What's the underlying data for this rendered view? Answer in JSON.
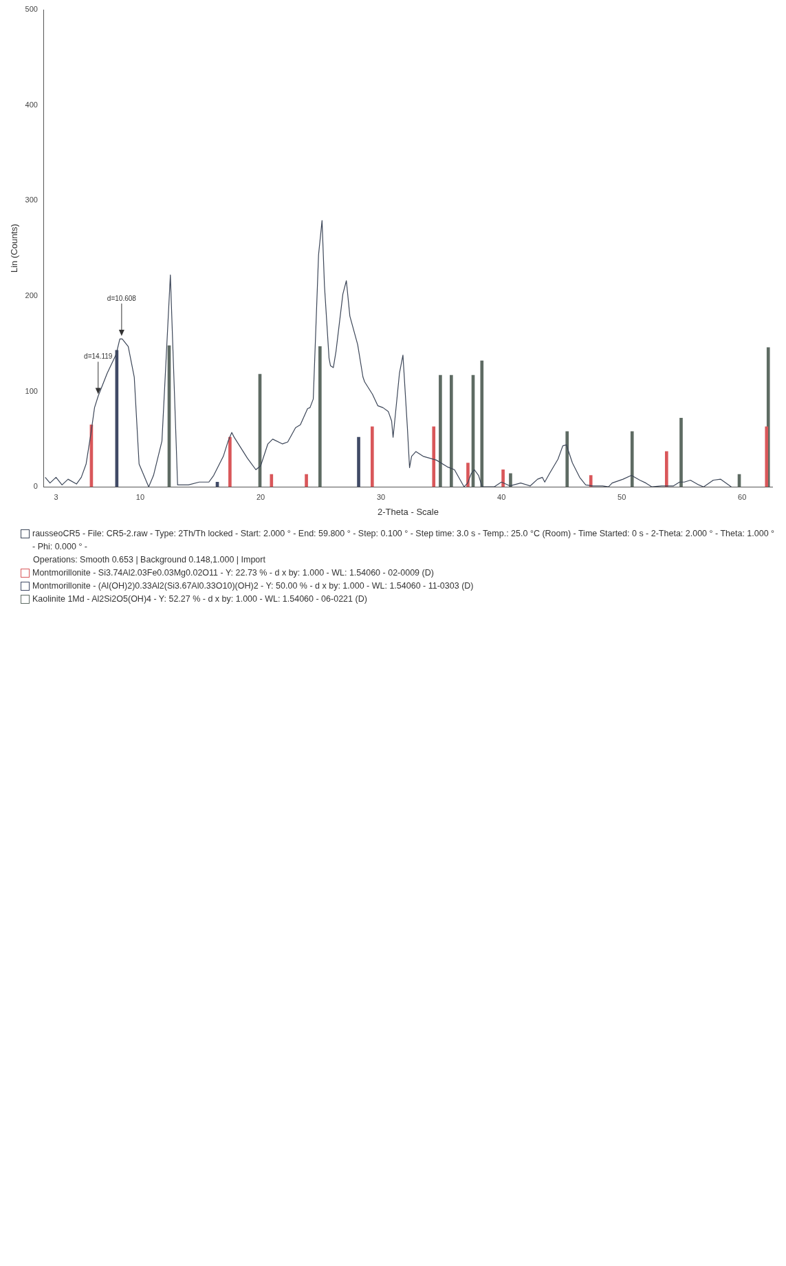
{
  "chart_data": {
    "type": "line",
    "xlabel": "2-Theta - Scale",
    "ylabel": "Lin (Counts)",
    "xlim": [
      2,
      62.5
    ],
    "xticks": [
      3,
      10,
      20,
      30,
      40,
      50,
      60
    ],
    "ylim": [
      0,
      500
    ],
    "yticks": [
      0,
      100,
      200,
      300,
      400,
      500
    ],
    "grid": false,
    "legend": "bottom",
    "marker": "none",
    "annotations": [
      {
        "text": "d=14.119",
        "x": 6.5,
        "y": 95
      },
      {
        "text": "d=10.608",
        "x": 8.45,
        "y": 156
      },
      "Operations: Smooth 0.653 | Background 0.148,1.000 | Import"
    ],
    "series": [
      {
        "name": "rausseoCR5 - File: CR5-2.raw - Type: 2Th/Th locked - Start: 2.000 ° - End: 59.800 ° - Step: 0.100 ° - Step time: 3.0 s - Temp.: 25.0 °C (Room) - Time Started: 0 s - 2-Theta: 2.000 ° - Theta: 1.000 ° - Phi: 0.000 ° -",
        "color": "#3c4658",
        "x": [
          2.1,
          2.5,
          3.0,
          3.5,
          4.0,
          4.7,
          5.1,
          5.5,
          5.9,
          6.2,
          6.5,
          7.25,
          8.0,
          8.3,
          8.5,
          9.0,
          9.5,
          9.9,
          10.7,
          11.1,
          11.8,
          12.5,
          13.1,
          14.0,
          14.9,
          15.7,
          16.1,
          16.9,
          17.3,
          17.6,
          17.8,
          18.9,
          19.6,
          20.0,
          20.6,
          21.0,
          21.8,
          22.25,
          22.9,
          23.3,
          23.9,
          24.1,
          24.37,
          24.81,
          25.1,
          25.3,
          25.68,
          25.8,
          26.04,
          26.26,
          26.83,
          27.12,
          27.41,
          28.06,
          28.5,
          28.64,
          29.29,
          29.73,
          30.16,
          30.6,
          30.88,
          31.0,
          31.1,
          31.53,
          31.82,
          32.19,
          32.37,
          32.54,
          32.9,
          33.5,
          34.06,
          34.6,
          35.5,
          36.1,
          36.5,
          36.9,
          37.2,
          37.5,
          37.75,
          38.1,
          38.4,
          39.0,
          39.4,
          40.0,
          40.7,
          41.6,
          42.4,
          43.0,
          43.4,
          43.6,
          44.0,
          44.7,
          45.1,
          45.4,
          45.9,
          46.5,
          47.0,
          47.6,
          48.4,
          48.9,
          49.2,
          50.1,
          50.8,
          51.5,
          52.0,
          52.5,
          53.3,
          53.8,
          54.3,
          54.8,
          55.2,
          55.7,
          56.4,
          56.8,
          57.6,
          58.2,
          59.1
        ],
        "values": [
          10,
          4,
          10,
          2,
          8,
          3,
          10,
          24,
          56,
          83,
          95,
          119,
          139,
          155,
          155,
          147,
          115,
          24,
          0,
          12,
          48,
          222,
          2,
          2,
          5,
          5,
          12,
          32,
          48,
          57,
          52,
          30,
          18,
          22,
          45,
          50,
          45,
          47,
          62,
          65,
          82,
          83,
          92,
          243,
          279,
          211,
          135,
          127,
          125,
          142,
          202,
          216,
          179,
          149,
          115,
          110,
          97,
          85,
          83,
          79,
          69,
          52,
          64,
          119,
          138,
          62,
          20,
          32,
          37,
          32,
          30,
          28,
          21,
          18,
          9,
          0,
          4,
          14,
          18,
          12,
          0,
          0,
          0,
          5,
          1,
          4,
          1,
          8,
          10,
          5,
          14,
          29,
          43,
          44,
          25,
          10,
          2,
          1,
          1,
          0,
          4,
          8,
          12,
          7,
          4,
          0,
          1,
          1,
          1,
          5,
          5,
          7,
          2,
          0,
          7,
          8,
          0
        ]
      },
      {
        "name": "Montmorillonite - Si3.74Al2.03Fe0.03Mg0.02O11 - Y: 22.73 % - d x by: 1.000 - WL: 1.54060 - 02-0009 (D)",
        "type": "bar",
        "color": "#d9575a",
        "x": [
          5.94,
          17.45,
          20.9,
          23.8,
          29.27,
          34.38,
          37.22,
          40.14,
          47.43,
          53.72,
          62.03
        ],
        "values": [
          65,
          52,
          13,
          13,
          63,
          63,
          25,
          18,
          12,
          37,
          63
        ]
      },
      {
        "name": "Montmorillonite - (Al(OH)2)0.33Al2(Si3.67Al0.33O10)(OH)2 - Y: 50.00 % - d x by: 1.000 - WL: 1.54060 - 11-0303 (D)",
        "type": "bar",
        "color": "#404a66",
        "x": [
          8.05,
          16.4,
          28.14
        ],
        "values": [
          143,
          5,
          52
        ]
      },
      {
        "name": "Kaolinite 1Md - Al2Si2O5(OH)4 - Y: 52.27 % - d x by: 1.000 - WL: 1.54060 - 06-0221 (D)",
        "type": "bar",
        "color": "#5e6b63",
        "x": [
          12.4,
          19.94,
          24.93,
          34.93,
          35.84,
          37.65,
          38.38,
          40.76,
          45.46,
          50.86,
          54.93,
          59.76,
          62.17
        ],
        "values": [
          148,
          118,
          147,
          117,
          117,
          117,
          132,
          14,
          58,
          58,
          72,
          13,
          146
        ]
      }
    ]
  }
}
